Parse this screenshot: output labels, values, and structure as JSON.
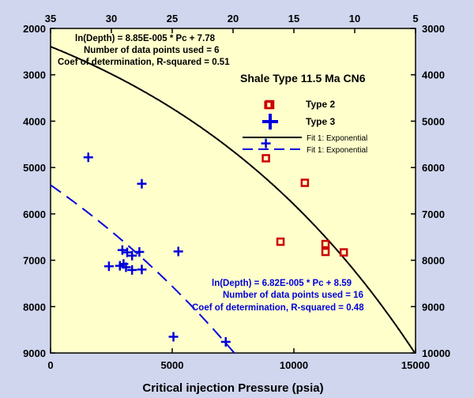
{
  "chart_data": {
    "type": "scatter",
    "title": "Shale Type 11.5 Ma CN6",
    "xlabel": "Critical injection Pressure (psia)",
    "ylabel": "",
    "xlim": [
      0,
      15000
    ],
    "ylim": [
      2000,
      9000
    ],
    "y_inverted": true,
    "x_ticks": [
      "0",
      "5000",
      "10000",
      "15000"
    ],
    "y_ticks": [
      "2000",
      "3000",
      "4000",
      "5000",
      "6000",
      "7000",
      "8000",
      "9000"
    ],
    "top_axis": {
      "range": [
        35,
        5
      ],
      "ticks": [
        "35",
        "30",
        "25",
        "20",
        "15",
        "10",
        "5"
      ]
    },
    "right_axis": {
      "range": [
        3000,
        10000
      ],
      "ticks": [
        "3000",
        "4000",
        "5000",
        "6000",
        "7000",
        "8000",
        "9000",
        "10000"
      ]
    },
    "grid": false,
    "legend_position": "top-right",
    "colors": {
      "plot_bg": "#ffffcc",
      "page_bg": "#cfd6ee",
      "type2": "#cc0000",
      "type3": "#0000dd",
      "fit1": "#000000",
      "fit2": "#0000dd"
    },
    "series": [
      {
        "name": "Type 2",
        "marker": "square",
        "points": [
          [
            8850,
            4800
          ],
          [
            10450,
            5330
          ],
          [
            9450,
            6600
          ],
          [
            11300,
            6650
          ],
          [
            11300,
            6820
          ],
          [
            12050,
            6830
          ],
          [
            8950,
            3650
          ]
        ]
      },
      {
        "name": "Type 3",
        "marker": "plus",
        "points": [
          [
            1550,
            4780
          ],
          [
            3750,
            5350
          ],
          [
            5250,
            6810
          ],
          [
            2950,
            6780
          ],
          [
            3150,
            6830
          ],
          [
            3650,
            6820
          ],
          [
            3350,
            6900
          ],
          [
            3000,
            7080
          ],
          [
            3100,
            7150
          ],
          [
            2400,
            7130
          ],
          [
            2850,
            7120
          ],
          [
            3350,
            7210
          ],
          [
            3750,
            7200
          ],
          [
            5050,
            8650
          ],
          [
            7200,
            8760
          ],
          [
            8850,
            4480
          ]
        ]
      }
    ],
    "fits": [
      {
        "name": "Fit 1: Exponential",
        "series": "Type 2",
        "style": "solid",
        "equation": "ln(Depth) = 8.85E-005 * Pc + 7.78",
        "n_text": "Number of data points used = 6",
        "r2_text": "Coef of determination, R-squared = 0.51",
        "a": 8.85e-05,
        "b": 7.78
      },
      {
        "name": "Fit 1: Exponential",
        "series": "Type 3",
        "style": "dashed",
        "equation": "ln(Depth) = 6.82E-005 * Pc + 8.59",
        "n_text": "Number of data points used = 16",
        "r2_text": "Coef of determination, R-squared = 0.48",
        "a": 6.82e-05,
        "b": 8.59
      }
    ]
  }
}
